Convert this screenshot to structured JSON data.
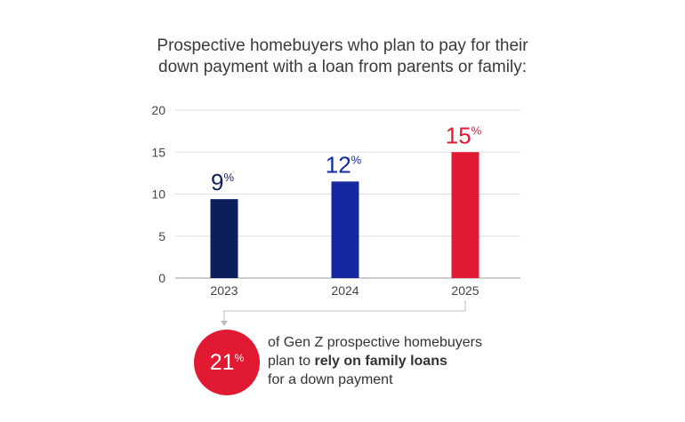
{
  "title_line1": "Prospective homebuyers who plan to pay for their",
  "title_line2": "down payment with a loan from parents or family:",
  "colors": {
    "bar_2023": "#0b1f5c",
    "bar_2024": "#1428a0",
    "bar_2025": "#e11931",
    "accent": "#e11931"
  },
  "chart_data": {
    "type": "bar",
    "categories": [
      "2023",
      "2024",
      "2025"
    ],
    "values": [
      9.4,
      11.5,
      15
    ],
    "data_labels": [
      {
        "number": "9",
        "unit": "%"
      },
      {
        "number": "12",
        "unit": "%"
      },
      {
        "number": "15",
        "unit": "%"
      }
    ],
    "bar_colors": [
      "#0b1f5c",
      "#1428a0",
      "#e11931"
    ],
    "label_colors": [
      "#0b1f5c",
      "#1428a0",
      "#e11931"
    ],
    "ylim": [
      0,
      20
    ],
    "yticks": [
      0,
      5,
      10,
      15,
      20
    ],
    "grid": true
  },
  "callout": {
    "number": "21",
    "unit": "%",
    "line1": "of Gen Z prospective homebuyers",
    "line2_prefix": "plan to ",
    "line2_bold": "rely on family loans",
    "line3": "for a down payment"
  }
}
